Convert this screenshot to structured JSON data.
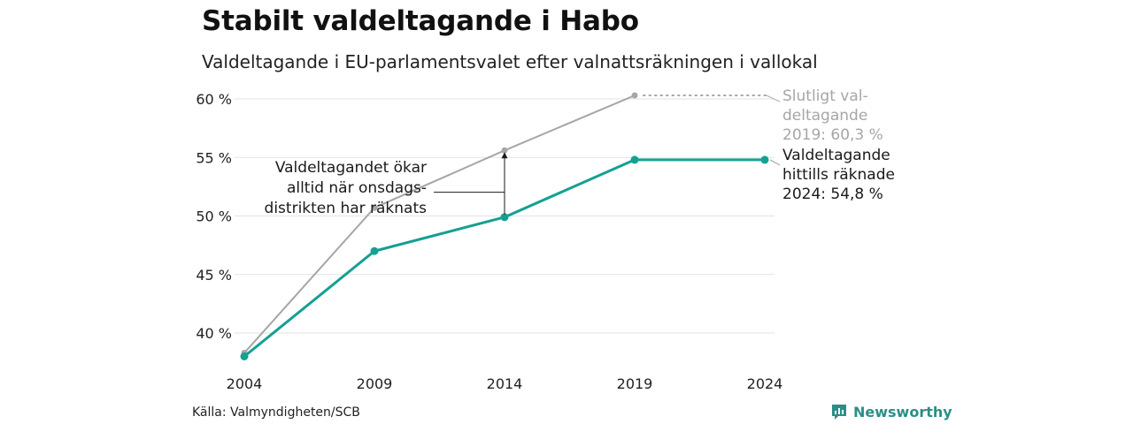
{
  "header": {
    "title": "Stabilt valdeltagande i Habo",
    "subtitle": "Valdeltagande i EU-parlamentsvalet efter valnattsräkningen i vallokal"
  },
  "footer": {
    "source": "Källa: Valmyndigheten/SCB",
    "brand": "Newsworthy"
  },
  "colors": {
    "final_series": "#a6a6a6",
    "counted_series": "#14a093",
    "grid": "#e3e3e3",
    "brand": "#2a8f87"
  },
  "chart_data": {
    "type": "line",
    "x": [
      "2004",
      "2009",
      "2014",
      "2019",
      "2024"
    ],
    "y_ticks": [
      40,
      45,
      50,
      55,
      60
    ],
    "y_tick_labels": [
      "40 %",
      "45 %",
      "50 %",
      "55 %",
      "60 %"
    ],
    "ylim": [
      38,
      61
    ],
    "grid": true,
    "series": [
      {
        "key": "final",
        "values": [
          38.3,
          50.7,
          55.6,
          60.3,
          null
        ],
        "end_label": [
          "Slutligt val-",
          "deltagande",
          "2019: 60,3 %"
        ]
      },
      {
        "key": "counted",
        "values": [
          38.0,
          47.0,
          49.9,
          54.8,
          54.8
        ],
        "end_label": [
          "Valdeltagande",
          "hittills räknade",
          "2024: 54,8 %"
        ]
      }
    ],
    "annotation": {
      "lines": [
        "Valdeltagandet ökar",
        "alltid när onsdags-",
        "distrikten har räknats"
      ]
    }
  }
}
